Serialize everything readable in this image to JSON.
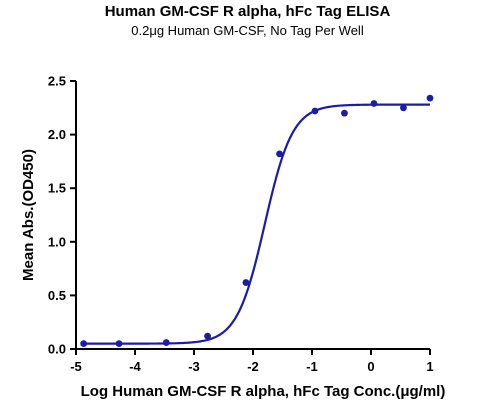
{
  "chart_data": {
    "type": "scatter",
    "title": "Human GM-CSF R alpha, hFc Tag ELISA",
    "subtitle": "0.2μg Human GM-CSF, No Tag Per Well",
    "xlabel": "Log Human GM-CSF R alpha, hFc Tag Conc.(μg/ml)",
    "ylabel": "Mean Abs.(OD450)",
    "xlim": [
      -5,
      1
    ],
    "ylim": [
      0,
      2.5
    ],
    "x_ticks": [
      -5,
      -4,
      -3,
      -2,
      -1,
      0,
      1
    ],
    "x_tick_labels": [
      "-5",
      "-4",
      "-3",
      "-2",
      "-1",
      "0",
      "1"
    ],
    "y_ticks": [
      0,
      0.5,
      1,
      1.5,
      2,
      2.5
    ],
    "y_tick_labels": [
      "0.0",
      "0.5",
      "1.0",
      "1.5",
      "2.0",
      "2.5"
    ],
    "grid": false,
    "series": [
      {
        "x": [
          -4.87,
          -4.27,
          -3.47,
          -2.77,
          -2.12,
          -1.55,
          -0.95,
          -0.45,
          0.05,
          0.55,
          1.0
        ],
        "y": [
          0.05,
          0.05,
          0.06,
          0.12,
          0.62,
          1.82,
          2.22,
          2.2,
          2.29,
          2.25,
          2.34
        ],
        "color": "#1c1ca8"
      }
    ],
    "fit_curve": {
      "bottom": 0.05,
      "top": 2.28,
      "logEC50": -1.8,
      "hillslope": 1.85,
      "x_range": [
        -4.87,
        1.0
      ]
    }
  }
}
